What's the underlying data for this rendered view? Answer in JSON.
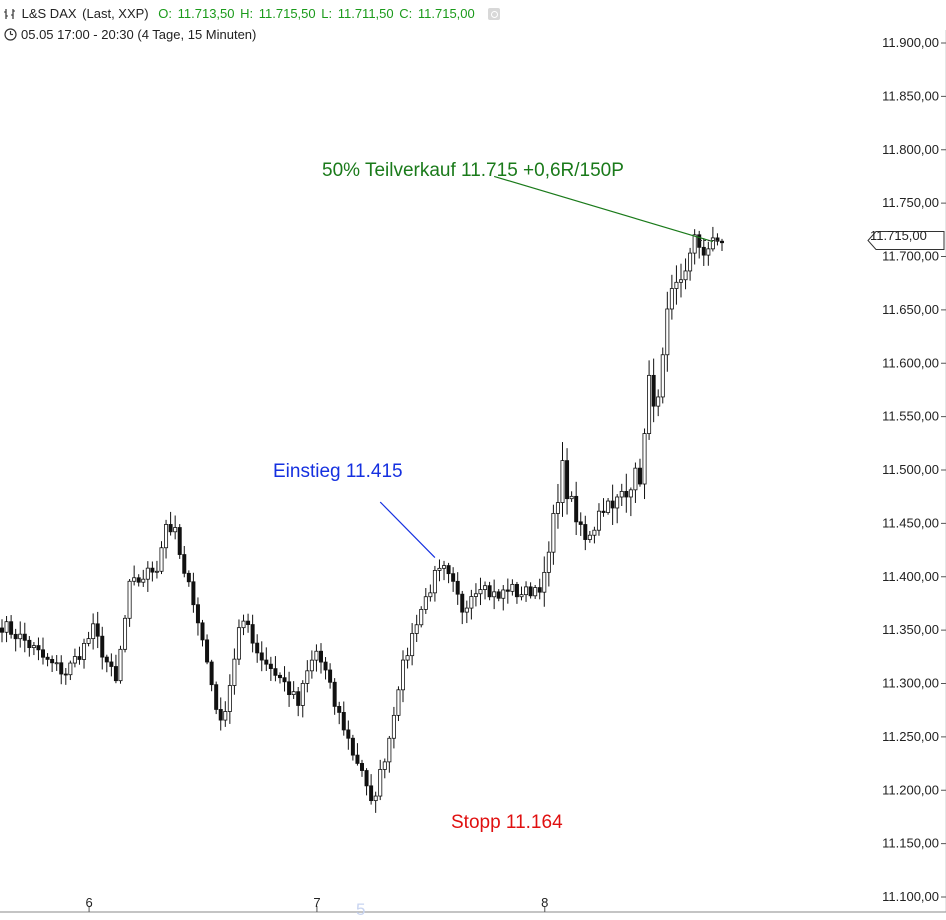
{
  "header": {
    "symbol": "L&S DAX",
    "feed": "(Last, XXP)",
    "open_label": "O:",
    "open": "11.713,50",
    "high_label": "H:",
    "high": "11.715,50",
    "low_label": "L:",
    "low": "11.711,50",
    "close_label": "C:",
    "close": "11.715,00",
    "range": "05.05 17:00 - 20:30 (4 Tage, 15 Minuten)"
  },
  "current_price_label": "11.715,00",
  "annotations": {
    "target": "50% Teilverkauf 11.715 +0,6R/150P",
    "entry": "Einstieg 11.415",
    "stop": "Stopp 11.164"
  },
  "faint_label": "5",
  "colors": {
    "target": "#1a7a1a",
    "entry": "#1530e0",
    "stop": "#e01010",
    "ohlc": "#1a9a1a",
    "candle": "#111111"
  },
  "chart_data": {
    "type": "candlestick",
    "title": "L&S DAX (Last, XXP)",
    "interval": "15 Minuten",
    "xlabel": "",
    "ylabel": "",
    "ylim": [
      11090,
      11930
    ],
    "y_ticks": [
      "11.100,00",
      "11.150,00",
      "11.200,00",
      "11.250,00",
      "11.300,00",
      "11.350,00",
      "11.400,00",
      "11.450,00",
      "11.500,00",
      "11.550,00",
      "11.600,00",
      "11.650,00",
      "11.700,00",
      "11.750,00",
      "11.800,00",
      "11.850,00",
      "11.900,00"
    ],
    "x_ticks": [
      {
        "label": "6",
        "index": 19
      },
      {
        "label": "7",
        "index": 69
      },
      {
        "label": "8",
        "index": 119
      }
    ],
    "path": [
      [
        0,
        11355
      ],
      [
        5,
        11340
      ],
      [
        10,
        11320
      ],
      [
        14,
        11310
      ],
      [
        18,
        11335
      ],
      [
        20,
        11350
      ],
      [
        22,
        11330
      ],
      [
        25,
        11300
      ],
      [
        28,
        11390
      ],
      [
        31,
        11400
      ],
      [
        34,
        11410
      ],
      [
        36,
        11450
      ],
      [
        38,
        11440
      ],
      [
        40,
        11400
      ],
      [
        42,
        11380
      ],
      [
        44,
        11340
      ],
      [
        46,
        11300
      ],
      [
        48,
        11260
      ],
      [
        50,
        11300
      ],
      [
        52,
        11350
      ],
      [
        54,
        11355
      ],
      [
        56,
        11330
      ],
      [
        58,
        11320
      ],
      [
        62,
        11300
      ],
      [
        65,
        11280
      ],
      [
        67,
        11310
      ],
      [
        69,
        11330
      ],
      [
        71,
        11310
      ],
      [
        73,
        11280
      ],
      [
        75,
        11260
      ],
      [
        77,
        11235
      ],
      [
        79,
        11220
      ],
      [
        80,
        11200
      ],
      [
        81,
        11185
      ],
      [
        83,
        11215
      ],
      [
        85,
        11250
      ],
      [
        87,
        11300
      ],
      [
        89,
        11330
      ],
      [
        91,
        11360
      ],
      [
        93,
        11380
      ],
      [
        95,
        11400
      ],
      [
        97,
        11405
      ],
      [
        99,
        11390
      ],
      [
        101,
        11370
      ],
      [
        103,
        11385
      ],
      [
        105,
        11395
      ],
      [
        107,
        11385
      ],
      [
        109,
        11380
      ],
      [
        111,
        11390
      ],
      [
        113,
        11385
      ],
      [
        115,
        11385
      ],
      [
        117,
        11390
      ],
      [
        119,
        11395
      ],
      [
        120,
        11420
      ],
      [
        121,
        11450
      ],
      [
        122,
        11480
      ],
      [
        123,
        11500
      ],
      [
        124,
        11480
      ],
      [
        126,
        11450
      ],
      [
        128,
        11440
      ],
      [
        130,
        11450
      ],
      [
        132,
        11470
      ],
      [
        134,
        11460
      ],
      [
        136,
        11480
      ],
      [
        138,
        11490
      ],
      [
        140,
        11495
      ],
      [
        141,
        11530
      ],
      [
        142,
        11580
      ],
      [
        143,
        11570
      ],
      [
        144,
        11560
      ],
      [
        145,
        11600
      ],
      [
        146,
        11640
      ],
      [
        147,
        11660
      ],
      [
        149,
        11680
      ],
      [
        151,
        11700
      ],
      [
        152,
        11715
      ],
      [
        154,
        11705
      ],
      [
        156,
        11712
      ],
      [
        158,
        11715
      ]
    ],
    "candles_total": 159
  },
  "reference_lines": [
    {
      "name": "target-line",
      "from": [
        108,
        11775
      ],
      "to": [
        156,
        11714
      ],
      "color": "#1a7a1a"
    },
    {
      "name": "entry-line",
      "from": [
        83,
        11470
      ],
      "to": [
        95,
        11418
      ],
      "color": "#1530e0"
    }
  ]
}
